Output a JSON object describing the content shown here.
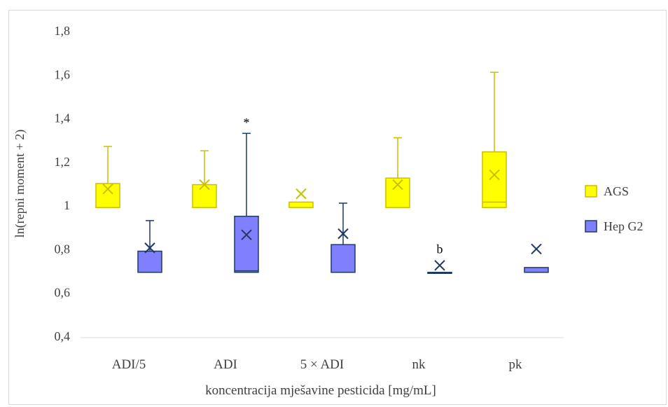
{
  "chart_data": {
    "type": "box",
    "title": "",
    "xlabel": "koncentracija mješavine pesticida [mg/mL]",
    "ylabel": "ln(repni moment + 2)",
    "ylim": [
      0.4,
      1.8
    ],
    "yticks": [
      0.4,
      0.6,
      0.8,
      1.0,
      1.2,
      1.4,
      1.6,
      1.8
    ],
    "ytick_labels": [
      "0,4",
      "0,6",
      "0,8",
      "1",
      "1,2",
      "1,4",
      "1,6",
      "1,8"
    ],
    "grid": false,
    "legend": "right",
    "categories": [
      "ADI/5",
      "ADI",
      "5 × ADI",
      "nk",
      "pk"
    ],
    "series": [
      {
        "name": "AGS",
        "color": "#ffff00",
        "edge_color": "#c9c000",
        "boxes": [
          {
            "min": 0.99,
            "q1": 0.99,
            "median": 0.99,
            "q3": 1.1,
            "max": 1.27,
            "mean": 1.075
          },
          {
            "min": 0.99,
            "q1": 0.99,
            "median": 0.99,
            "q3": 1.095,
            "max": 1.25,
            "mean": 1.095
          },
          {
            "min": 0.99,
            "q1": 0.99,
            "median": 0.99,
            "q3": 1.015,
            "max": 1.015,
            "mean": 1.053
          },
          {
            "min": 0.99,
            "q1": 0.99,
            "median": 0.99,
            "q3": 1.125,
            "max": 1.31,
            "mean": 1.095
          },
          {
            "min": 0.99,
            "q1": 0.99,
            "median": 1.015,
            "q3": 1.245,
            "max": 1.61,
            "mean": 1.14
          }
        ]
      },
      {
        "name": "Hep G2",
        "color": "#8080ff",
        "edge_color": "#203864",
        "boxes": [
          {
            "min": 0.693,
            "q1": 0.693,
            "median": 0.693,
            "q3": 0.79,
            "max": 0.93,
            "mean": 0.805
          },
          {
            "min": 0.693,
            "q1": 0.693,
            "median": 0.7,
            "q3": 0.95,
            "max": 1.33,
            "mean": 0.865
          },
          {
            "min": 0.693,
            "q1": 0.693,
            "median": 0.693,
            "q3": 0.82,
            "max": 1.01,
            "mean": 0.87
          },
          {
            "min": 0.693,
            "q1": 0.693,
            "median": 0.693,
            "q3": 0.693,
            "max": 0.693,
            "mean": 0.725
          },
          {
            "min": 0.693,
            "q1": 0.693,
            "median": 0.693,
            "q3": 0.715,
            "max": 0.715,
            "mean": 0.8
          }
        ]
      }
    ],
    "annotations": [
      {
        "text": "*",
        "category": "ADI",
        "series": "Hep G2",
        "y": 1.36
      },
      {
        "text": "b",
        "category": "nk",
        "series": "Hep G2",
        "y": 0.78
      }
    ]
  }
}
